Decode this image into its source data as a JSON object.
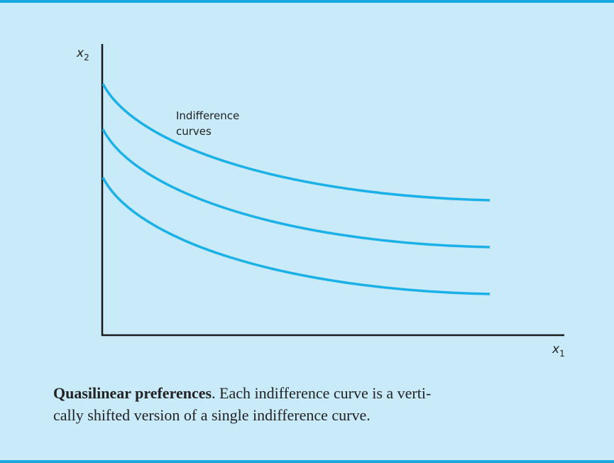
{
  "figure": {
    "y_axis": {
      "symbol": "x",
      "subscript": "2"
    },
    "x_axis": {
      "symbol": "x",
      "subscript": "1"
    },
    "curve_label": [
      "Indifference",
      "curves"
    ],
    "caption": {
      "title": "Quasilinear preferences",
      "lines": [
        ". Each indifference curve is a verti-",
        "cally shifted version of a single indifference curve."
      ]
    }
  }
}
